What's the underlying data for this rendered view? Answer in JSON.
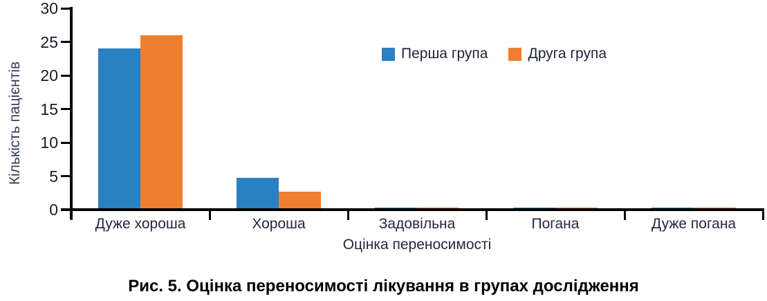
{
  "figure": {
    "caption": "Рис. 5. Оцінка переносимості лікування в групах дослідження"
  },
  "chart_data": {
    "type": "bar",
    "title": "",
    "xlabel": "Оцінка переносимості",
    "ylabel": "Кількість пацієнтів",
    "categories": [
      "Дуже хороша",
      "Хороша",
      "Задовільна",
      "Погана",
      "Дуже погана"
    ],
    "series": [
      {
        "name": "Перша група",
        "color": "#2A80C1",
        "values": [
          24,
          4.7,
          0.3,
          0.3,
          0.3
        ]
      },
      {
        "name": "Друга група",
        "color": "#EF7E2E",
        "values": [
          26,
          2.7,
          0.3,
          0.3,
          0.3
        ]
      }
    ],
    "ylim": [
      0,
      30
    ],
    "yticks": [
      0,
      5,
      10,
      15,
      20,
      25,
      30
    ],
    "grid": false,
    "legend_position": "top-center-inside",
    "colors": {
      "axis": "#000000",
      "tick_text": "#171A2E",
      "label_text": "#343A56",
      "background": "#FFFFFF"
    }
  }
}
